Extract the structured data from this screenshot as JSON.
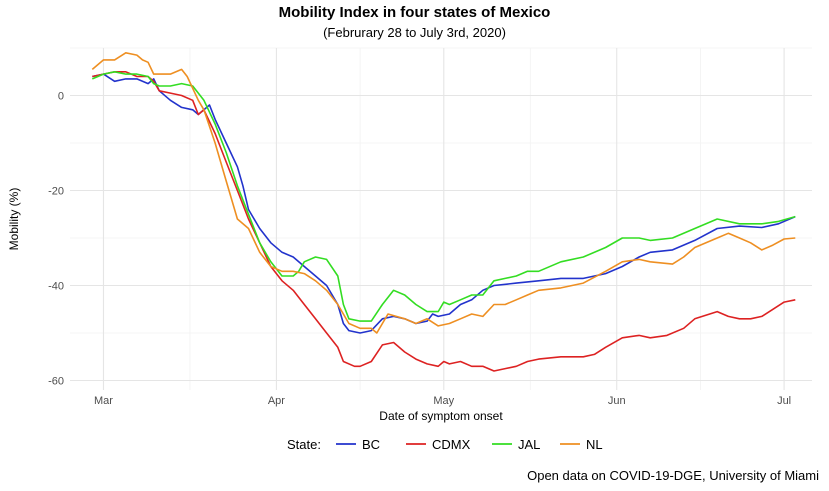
{
  "chart_data": {
    "type": "line",
    "title": "Mobility Index in four states of Mexico",
    "subtitle": "(Februrary 28 to July 3rd, 2020)",
    "xlabel": "Date of symptom onset",
    "ylabel": "Mobility (%)",
    "caption": "Open data on COVID-19-DGE, University of Miami",
    "x_start_day": 0,
    "x_end_day": 126,
    "xlim": [
      -4,
      129
    ],
    "ylim": [
      -62,
      10
    ],
    "x_ticks": [
      {
        "day": 2,
        "label": "Mar"
      },
      {
        "day": 33,
        "label": "Apr"
      },
      {
        "day": 63,
        "label": "May"
      },
      {
        "day": 94,
        "label": "Jun"
      },
      {
        "day": 124,
        "label": "Jul"
      }
    ],
    "y_ticks": [
      {
        "value": 0,
        "label": "0"
      },
      {
        "value": -20,
        "label": "-20"
      },
      {
        "value": -40,
        "label": "-40"
      },
      {
        "value": -60,
        "label": "-60"
      }
    ],
    "legend": {
      "title": "State:",
      "position": "bottom"
    },
    "series": [
      {
        "name": "BC",
        "color": "#2233cc",
        "points": [
          [
            0,
            4
          ],
          [
            2,
            4.5
          ],
          [
            4,
            3
          ],
          [
            6,
            3.5
          ],
          [
            8,
            3.5
          ],
          [
            10,
            2.5
          ],
          [
            11,
            3.5
          ],
          [
            12,
            1
          ],
          [
            14,
            -1
          ],
          [
            16,
            -2.5
          ],
          [
            18,
            -3
          ],
          [
            19,
            -4
          ],
          [
            20,
            -3
          ],
          [
            21,
            -2
          ],
          [
            22,
            -5
          ],
          [
            24,
            -10
          ],
          [
            26,
            -15
          ],
          [
            27,
            -19
          ],
          [
            28,
            -24
          ],
          [
            30,
            -28
          ],
          [
            32,
            -31
          ],
          [
            34,
            -33
          ],
          [
            36,
            -34
          ],
          [
            38,
            -36
          ],
          [
            40,
            -38
          ],
          [
            42,
            -40
          ],
          [
            44,
            -44
          ],
          [
            45,
            -48
          ],
          [
            46,
            -49.5
          ],
          [
            48,
            -50
          ],
          [
            50,
            -49.5
          ],
          [
            52,
            -47
          ],
          [
            54,
            -46.5
          ],
          [
            56,
            -47
          ],
          [
            58,
            -48
          ],
          [
            60,
            -47.5
          ],
          [
            61,
            -46
          ],
          [
            62,
            -46.5
          ],
          [
            64,
            -46
          ],
          [
            66,
            -44
          ],
          [
            68,
            -43
          ],
          [
            70,
            -41
          ],
          [
            72,
            -40
          ],
          [
            76,
            -39.5
          ],
          [
            80,
            -39
          ],
          [
            84,
            -38.5
          ],
          [
            88,
            -38.5
          ],
          [
            92,
            -37.5
          ],
          [
            95,
            -36
          ],
          [
            98,
            -34
          ],
          [
            100,
            -33
          ],
          [
            104,
            -32.5
          ],
          [
            108,
            -30.5
          ],
          [
            112,
            -28
          ],
          [
            116,
            -27.5
          ],
          [
            120,
            -27.8
          ],
          [
            123,
            -27
          ],
          [
            126,
            -25.5
          ]
        ]
      },
      {
        "name": "CDMX",
        "color": "#dd2222",
        "points": [
          [
            0,
            4
          ],
          [
            2,
            4.5
          ],
          [
            4,
            5
          ],
          [
            6,
            5
          ],
          [
            8,
            4
          ],
          [
            10,
            4
          ],
          [
            11,
            3
          ],
          [
            12,
            1
          ],
          [
            14,
            0.5
          ],
          [
            16,
            0
          ],
          [
            18,
            -1
          ],
          [
            19,
            -4
          ],
          [
            20,
            -3
          ],
          [
            22,
            -8
          ],
          [
            24,
            -14
          ],
          [
            26,
            -20
          ],
          [
            28,
            -26
          ],
          [
            30,
            -31
          ],
          [
            32,
            -36
          ],
          [
            34,
            -39
          ],
          [
            36,
            -41
          ],
          [
            38,
            -44
          ],
          [
            40,
            -47
          ],
          [
            42,
            -50
          ],
          [
            44,
            -53
          ],
          [
            45,
            -56
          ],
          [
            47,
            -57
          ],
          [
            48,
            -57
          ],
          [
            50,
            -56
          ],
          [
            52,
            -52.5
          ],
          [
            54,
            -52
          ],
          [
            56,
            -54
          ],
          [
            58,
            -55.5
          ],
          [
            60,
            -56.5
          ],
          [
            62,
            -57
          ],
          [
            63,
            -56
          ],
          [
            64,
            -56.5
          ],
          [
            66,
            -56
          ],
          [
            68,
            -57
          ],
          [
            70,
            -57
          ],
          [
            72,
            -58
          ],
          [
            74,
            -57.5
          ],
          [
            76,
            -57
          ],
          [
            78,
            -56
          ],
          [
            80,
            -55.5
          ],
          [
            84,
            -55
          ],
          [
            88,
            -55
          ],
          [
            90,
            -54.5
          ],
          [
            92,
            -53
          ],
          [
            95,
            -51
          ],
          [
            98,
            -50.5
          ],
          [
            100,
            -51
          ],
          [
            103,
            -50.5
          ],
          [
            106,
            -49
          ],
          [
            108,
            -47
          ],
          [
            112,
            -45.5
          ],
          [
            114,
            -46.5
          ],
          [
            116,
            -47
          ],
          [
            118,
            -47
          ],
          [
            120,
            -46.5
          ],
          [
            122,
            -45
          ],
          [
            124,
            -43.5
          ],
          [
            126,
            -43
          ]
        ]
      },
      {
        "name": "JAL",
        "color": "#33dd22",
        "points": [
          [
            0,
            3.5
          ],
          [
            2,
            4.5
          ],
          [
            4,
            5
          ],
          [
            6,
            4.5
          ],
          [
            8,
            4.5
          ],
          [
            10,
            4
          ],
          [
            11,
            2.5
          ],
          [
            12,
            2
          ],
          [
            14,
            2
          ],
          [
            16,
            2.5
          ],
          [
            18,
            2
          ],
          [
            20,
            -1
          ],
          [
            22,
            -6
          ],
          [
            24,
            -12
          ],
          [
            26,
            -19
          ],
          [
            28,
            -25
          ],
          [
            30,
            -31
          ],
          [
            32,
            -35
          ],
          [
            34,
            -38
          ],
          [
            36,
            -38
          ],
          [
            37,
            -37
          ],
          [
            38,
            -35
          ],
          [
            40,
            -34
          ],
          [
            42,
            -34.5
          ],
          [
            44,
            -38
          ],
          [
            45,
            -44
          ],
          [
            46,
            -47
          ],
          [
            48,
            -47.5
          ],
          [
            50,
            -47.5
          ],
          [
            52,
            -44
          ],
          [
            54,
            -41
          ],
          [
            56,
            -42
          ],
          [
            58,
            -44
          ],
          [
            60,
            -45.5
          ],
          [
            62,
            -45.5
          ],
          [
            63,
            -43.5
          ],
          [
            64,
            -44
          ],
          [
            66,
            -43
          ],
          [
            68,
            -42
          ],
          [
            70,
            -42
          ],
          [
            72,
            -39
          ],
          [
            74,
            -38.5
          ],
          [
            76,
            -38
          ],
          [
            78,
            -37
          ],
          [
            80,
            -37
          ],
          [
            84,
            -35
          ],
          [
            88,
            -34
          ],
          [
            92,
            -32
          ],
          [
            95,
            -30
          ],
          [
            98,
            -30
          ],
          [
            100,
            -30.5
          ],
          [
            104,
            -30
          ],
          [
            108,
            -28
          ],
          [
            110,
            -27
          ],
          [
            112,
            -26
          ],
          [
            116,
            -27
          ],
          [
            118,
            -27
          ],
          [
            120,
            -27
          ],
          [
            123,
            -26.5
          ],
          [
            126,
            -25.5
          ]
        ]
      },
      {
        "name": "NL",
        "color": "#ee8f22",
        "points": [
          [
            0,
            5.5
          ],
          [
            2,
            7.5
          ],
          [
            4,
            7.5
          ],
          [
            6,
            9
          ],
          [
            8,
            8.5
          ],
          [
            9,
            7.5
          ],
          [
            10,
            7
          ],
          [
            11,
            4.5
          ],
          [
            12,
            4.5
          ],
          [
            14,
            4.5
          ],
          [
            16,
            5.5
          ],
          [
            17,
            4
          ],
          [
            19,
            -1
          ],
          [
            20,
            -3
          ],
          [
            22,
            -10
          ],
          [
            24,
            -18
          ],
          [
            26,
            -26
          ],
          [
            28,
            -28
          ],
          [
            30,
            -33
          ],
          [
            32,
            -36
          ],
          [
            34,
            -37
          ],
          [
            36,
            -37
          ],
          [
            38,
            -37.5
          ],
          [
            40,
            -39
          ],
          [
            42,
            -41
          ],
          [
            44,
            -44
          ],
          [
            46,
            -48
          ],
          [
            48,
            -49
          ],
          [
            50,
            -49
          ],
          [
            51,
            -50
          ],
          [
            52,
            -48
          ],
          [
            53,
            -46
          ],
          [
            56,
            -47
          ],
          [
            58,
            -48
          ],
          [
            60,
            -47
          ],
          [
            62,
            -48.5
          ],
          [
            64,
            -48
          ],
          [
            66,
            -47
          ],
          [
            68,
            -46
          ],
          [
            70,
            -46.5
          ],
          [
            72,
            -44
          ],
          [
            74,
            -44
          ],
          [
            76,
            -43
          ],
          [
            78,
            -42
          ],
          [
            80,
            -41
          ],
          [
            84,
            -40.5
          ],
          [
            88,
            -39.5
          ],
          [
            92,
            -37
          ],
          [
            95,
            -35
          ],
          [
            98,
            -34.5
          ],
          [
            100,
            -35
          ],
          [
            104,
            -35.5
          ],
          [
            106,
            -34
          ],
          [
            108,
            -32
          ],
          [
            112,
            -30
          ],
          [
            114,
            -29
          ],
          [
            116,
            -30
          ],
          [
            118,
            -31
          ],
          [
            120,
            -32.5
          ],
          [
            122,
            -31.5
          ],
          [
            124,
            -30.2
          ],
          [
            126,
            -30
          ]
        ]
      }
    ]
  }
}
